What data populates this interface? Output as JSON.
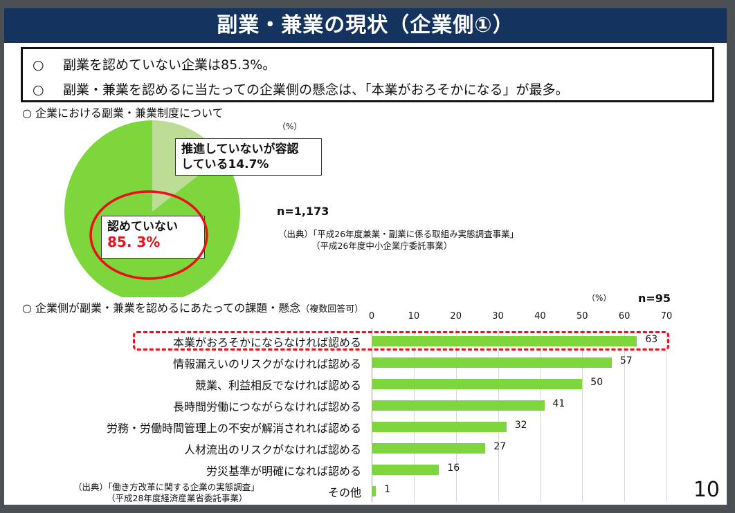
{
  "header": {
    "title": "副業・兼業の現状（企業側①）"
  },
  "summary": {
    "bullet": "○",
    "lines": [
      "副業を認めていない企業は85.3%。",
      "副業・兼業を認めるに当たっての企業側の懸念は、「本業がおろそかになる」が最多。"
    ]
  },
  "colors": {
    "header": "#14335e",
    "bar": "#7dd63c",
    "pie_main": "#7dd63c",
    "pie_minor": "#bddc96",
    "highlight": "#e8101a"
  },
  "chart_data": [
    {
      "type": "pie",
      "title": "○ 企業における副業・兼業制度について",
      "unit_label": "（%）",
      "n_label": "n=1,173",
      "slices": [
        {
          "label": "推進していないが容認している",
          "value": 14.7,
          "text_line1": "推進していないが容認",
          "text_line2": "している14.7%"
        },
        {
          "label": "認めていない",
          "value": 85.3,
          "text_line1": "認めていない",
          "text_line2": "85. 3%"
        }
      ],
      "source": [
        "（出典）「平成26年度兼業・副業に係る取組み実態調査事業」",
        "（平成26年度中小企業庁委託事業）"
      ]
    },
    {
      "type": "bar",
      "orientation": "horizontal",
      "title": "○ 企業側が副業・兼業を認めるにあたっての課題・懸念",
      "title_note": "（複数回答可）",
      "unit_label": "（%）",
      "n_label": "n=95",
      "xlim": [
        0,
        70
      ],
      "ticks": [
        "0",
        "10",
        "20",
        "30",
        "40",
        "50",
        "60",
        "70"
      ],
      "grid": true,
      "categories": [
        "本業がおろそかにならなければ認める",
        "情報漏えいのリスクがなければ認める",
        "競業、利益相反でなければ認める",
        "長時間労働につながらなければ認める",
        "労務・労働時間管理上の不安が解消されれば認める",
        "人材流出のリスクがなければ認める",
        "労災基準が明確になれば認める",
        "その他"
      ],
      "values": [
        63,
        57,
        50,
        41,
        32,
        27,
        16,
        1
      ],
      "value_labels": [
        "63",
        "57",
        "50",
        "41",
        "32",
        "27",
        "16",
        "1"
      ],
      "highlighted_index": 0,
      "source": [
        "（出典）「働き方改革に関する企業の実態調査」",
        "（平成28年度経済産業省委託事業）"
      ]
    }
  ],
  "page_number": "10"
}
